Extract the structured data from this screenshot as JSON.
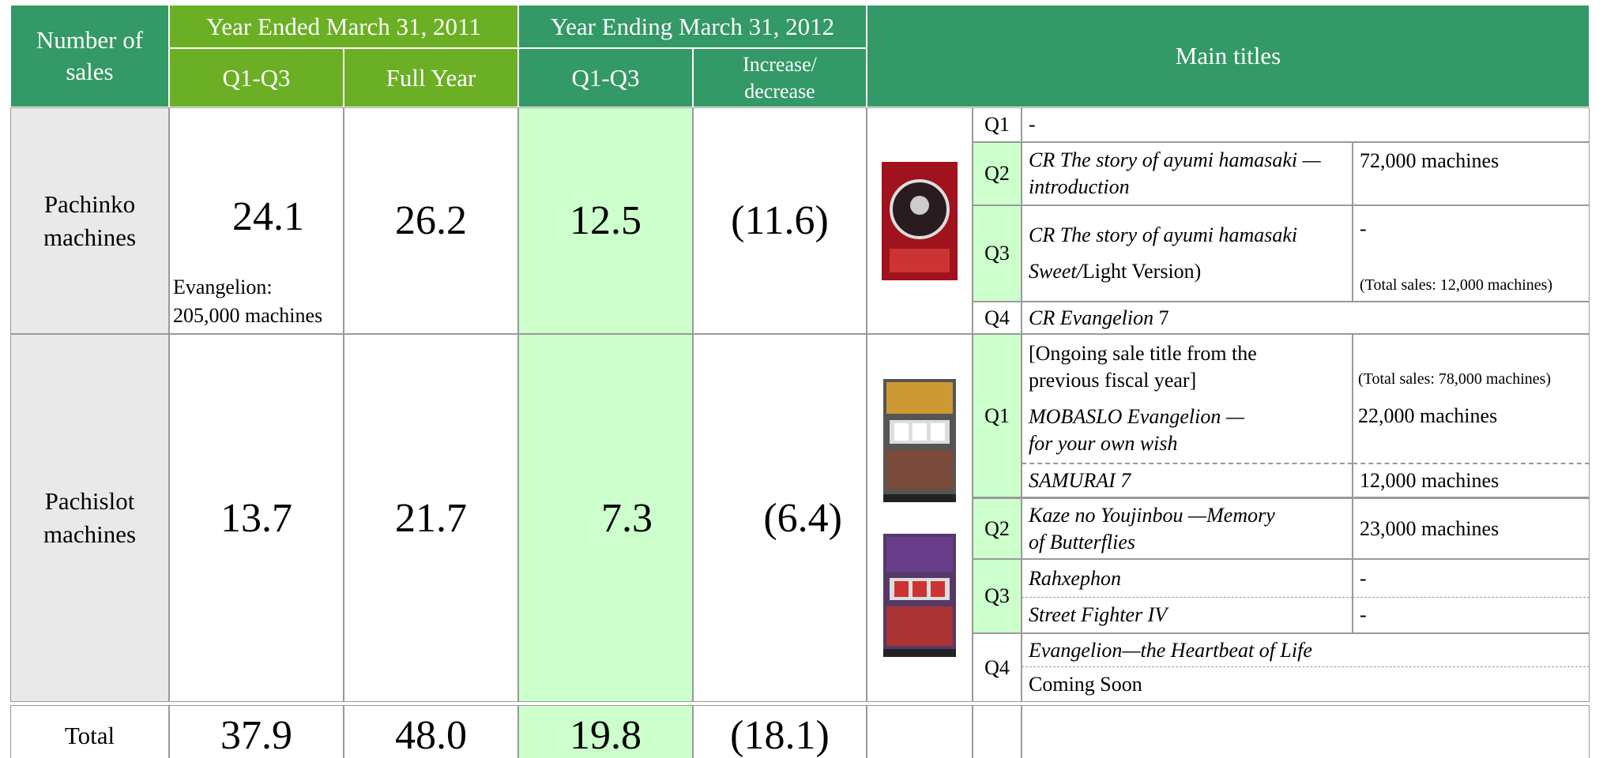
{
  "header": {
    "col0": "Number of sales",
    "fy2011": "Year Ended March 31, 2011",
    "fy2012": "Year Ending March 31, 2012",
    "q1q3_2011": "Q1-Q3",
    "full_year": "Full Year",
    "q1q3_2012": "Q1-Q3",
    "change": "Increase/ decrease",
    "main_titles": "Main titles"
  },
  "pachinko": {
    "label": "Pachinko machines",
    "values": [
      "24.1",
      "26.2",
      "12.5",
      "(11.6)"
    ],
    "note": "Evangelion: 205,000 machines",
    "q1": {
      "quarter": "Q1",
      "title": "-"
    },
    "q2": {
      "quarter": "Q2",
      "title": "CR The story of ayumi hamasaki —introduction",
      "amount": "72,000 machines"
    },
    "q3": {
      "quarter": "Q3",
      "title_italic": "CR The story of ayumi hamasaki Sweet/",
      "title_plain": "Light Version)",
      "amount": "-",
      "total": "(Total sales: 12,000 machines)"
    },
    "q4": {
      "quarter": "Q4",
      "title_italic": "CR Evangelion",
      "title_plain": "7"
    }
  },
  "pachislot": {
    "label": "Pachislot machines",
    "values": [
      "13.7",
      "21.7",
      "7.3",
      "(6.4)"
    ],
    "q1": {
      "quarter": "Q1",
      "note": "[Ongoing sale title from the previous fiscal year]",
      "total": "(Total sales: 78,000 machines)",
      "titles": [
        {
          "title": "MOBASLO Evangelion —for your own wish",
          "amount": "22,000 machines"
        },
        {
          "title": "SAMURAI 7",
          "amount": "12,000 machines"
        }
      ]
    },
    "q2": {
      "quarter": "Q2",
      "title": "Kaze no Youjinbou —Memory of Butterflies",
      "amount": "23,000 machines"
    },
    "q3": {
      "quarter": "Q3",
      "titles": [
        {
          "title": "Rahxephon",
          "amount": "-"
        },
        {
          "title": "Street Fighter IV",
          "amount": "-"
        }
      ]
    },
    "q4": {
      "quarter": "Q4",
      "title": "Evangelion—the Heartbeat of Life",
      "status": "Coming Soon"
    }
  },
  "total": {
    "label": "Total",
    "values": [
      "37.9",
      "48.0",
      "19.8",
      "(18.1)"
    ]
  }
}
